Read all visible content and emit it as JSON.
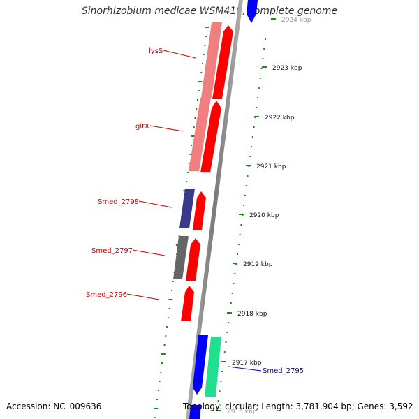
{
  "title": "Sinorhizobium medicae WSM419, complete genome",
  "footer": {
    "accession": "Accession: NC_009636",
    "topology": "Topology: circular; Length: 3,781,904 bp; Genes: 3,592"
  },
  "colors": {
    "backbone": "#888888",
    "tick": "#1e8a1e",
    "forward_gene": "#ff0000",
    "forward_label": "#cc0000",
    "reverse_label": "#0000cc"
  },
  "scale": {
    "unit": "kbp",
    "labels": [
      "2924 kbp",
      "2923 kbp",
      "2922 kbp",
      "2921 kbp",
      "2920 kbp",
      "2919 kbp",
      "2918 kbp",
      "2917 kbp",
      "2916 kbp"
    ]
  },
  "genes": [
    {
      "label": "lysS",
      "strand": "forward",
      "color": "#ff0000",
      "shadow_color": "#f08080"
    },
    {
      "label": "gltX",
      "strand": "forward",
      "color": "#ff0000",
      "shadow_color": "#f08080"
    },
    {
      "label": "Smed_2798",
      "strand": "forward",
      "color": "#ff0000",
      "shadow_color": "#3a3a8a"
    },
    {
      "label": "Smed_2797",
      "strand": "forward",
      "color": "#ff0000",
      "shadow_color": "#666666"
    },
    {
      "label": "Smed_2796",
      "strand": "forward",
      "color": "#ff0000",
      "shadow_color": ""
    },
    {
      "label": "Smed_2795",
      "strand": "reverse",
      "color": "#0000ff",
      "shadow_color": "#20e090"
    }
  ]
}
